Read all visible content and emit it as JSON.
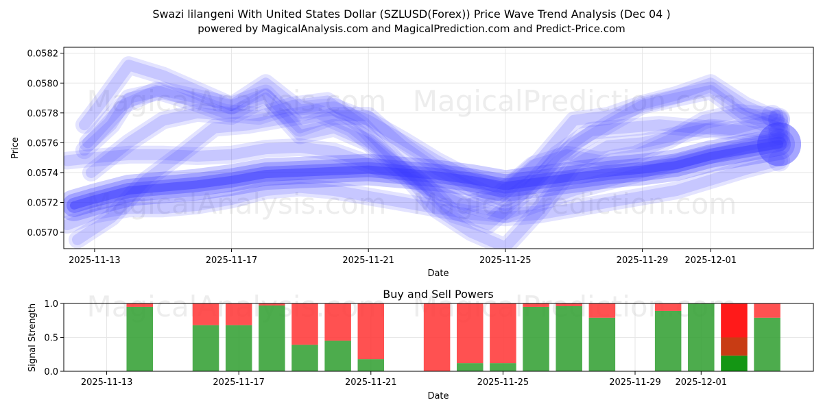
{
  "colors": {
    "wave": "#3a3aff",
    "buy": "#2e9e2e",
    "sell": "#ff3333",
    "mixed": "#c83c14",
    "buy_strong": "#149614",
    "sell_strong": "#ff1a1a"
  },
  "chart_data": [
    {
      "type": "line",
      "title": "Swazi lilangeni With United States Dollar (SZLUSD(Forex)) Price Wave Trend Analysis (Dec 04 )",
      "subtitle": "powered by MagicalAnalysis.com and MagicalPrediction.com and Predict-Price.com",
      "xlabel": "Date",
      "ylabel": "Price",
      "xlim": [
        -0.9,
        21.0
      ],
      "ylim": [
        0.05689,
        0.05824
      ],
      "x_ticks": [
        {
          "day": 0,
          "label": "2025-11-13"
        },
        {
          "day": 4,
          "label": "2025-11-17"
        },
        {
          "day": 8,
          "label": "2025-11-21"
        },
        {
          "day": 12,
          "label": "2025-11-25"
        },
        {
          "day": 16,
          "label": "2025-11-29"
        },
        {
          "day": 18,
          "label": "2025-12-01"
        }
      ],
      "y_ticks": [
        "0.0570",
        "0.0572",
        "0.0574",
        "0.0576",
        "0.0578",
        "0.0580",
        "0.0582"
      ],
      "watermarks": [
        "MagicalAnalysis.com",
        "MagicalPrediction.com"
      ],
      "series": [
        {
          "name": "wave-main",
          "x": [
            -0.6,
            0,
            1,
            2,
            3,
            4,
            5,
            6,
            7,
            8,
            9,
            10,
            11,
            12,
            13,
            14,
            15,
            16,
            17,
            18,
            19,
            20
          ],
          "values": [
            0.05718,
            0.05722,
            0.05728,
            0.0573,
            0.05732,
            0.05735,
            0.05739,
            0.0574,
            0.05741,
            0.05742,
            0.0574,
            0.05738,
            0.05735,
            0.05731,
            0.05734,
            0.05737,
            0.0574,
            0.05742,
            0.05745,
            0.05751,
            0.05755,
            0.05759
          ]
        },
        {
          "name": "wave-2",
          "x": [
            -0.8,
            0,
            1,
            2,
            3,
            4,
            5,
            6,
            7,
            8,
            9,
            10,
            11,
            12,
            13,
            14,
            15,
            16,
            17,
            18,
            19,
            20
          ],
          "values": [
            0.05748,
            0.0575,
            0.05752,
            0.05752,
            0.05751,
            0.05752,
            0.05756,
            0.05757,
            0.05754,
            0.05746,
            0.05738,
            0.05728,
            0.05718,
            0.05712,
            0.0572,
            0.05728,
            0.05734,
            0.0574,
            0.05746,
            0.05752,
            0.05758,
            0.05762
          ]
        },
        {
          "name": "wave-3",
          "x": [
            -0.8,
            0,
            1,
            2,
            3,
            4,
            5,
            6,
            7,
            8,
            9,
            10,
            11,
            12,
            13,
            14,
            15,
            16,
            17,
            18,
            19,
            20
          ],
          "values": [
            0.05705,
            0.05712,
            0.05716,
            0.05716,
            0.05718,
            0.05722,
            0.05728,
            0.0573,
            0.05728,
            0.05724,
            0.0572,
            0.05716,
            0.05712,
            0.0571,
            0.05712,
            0.05716,
            0.0572,
            0.05724,
            0.05728,
            0.05735,
            0.05742,
            0.05748
          ]
        },
        {
          "name": "wave-4",
          "x": [
            -0.3,
            0.3,
            1,
            2,
            3,
            4,
            5,
            6,
            7,
            8,
            9,
            10,
            11,
            12,
            13,
            14,
            15,
            16,
            17,
            18,
            19,
            20
          ],
          "values": [
            0.05772,
            0.0579,
            0.05812,
            0.05805,
            0.05795,
            0.05785,
            0.058,
            0.05782,
            0.05784,
            0.05775,
            0.05762,
            0.05748,
            0.05736,
            0.05728,
            0.05748,
            0.05775,
            0.05778,
            0.05786,
            0.05792,
            0.058,
            0.05785,
            0.05775
          ]
        },
        {
          "name": "wave-5",
          "x": [
            -0.3,
            0.5,
            1,
            2,
            3,
            4,
            5,
            6,
            7,
            8,
            9,
            10,
            11,
            12,
            13,
            14,
            15,
            16,
            17,
            18,
            19,
            20
          ],
          "values": [
            0.05755,
            0.05772,
            0.0579,
            0.05795,
            0.0579,
            0.05785,
            0.05793,
            0.0577,
            0.05778,
            0.05778,
            0.05758,
            0.05742,
            0.0573,
            0.0572,
            0.05736,
            0.05758,
            0.05772,
            0.05785,
            0.0579,
            0.05795,
            0.05778,
            0.0577
          ]
        },
        {
          "name": "wave-6",
          "x": [
            -0.1,
            1,
            2,
            3,
            4,
            5,
            6,
            7,
            8,
            9,
            10,
            11,
            12,
            13,
            14,
            15,
            16,
            17,
            18,
            19,
            20
          ],
          "values": [
            0.0574,
            0.0576,
            0.05775,
            0.0578,
            0.05778,
            0.0579,
            0.05765,
            0.0577,
            0.0576,
            0.0574,
            0.05715,
            0.057,
            0.0569,
            0.05715,
            0.05745,
            0.05758,
            0.0576,
            0.05765,
            0.0577,
            0.05768,
            0.05766
          ]
        },
        {
          "name": "wave-7",
          "x": [
            -0.5,
            0.5,
            1.5,
            2.5,
            3.5,
            4.5,
            5.5,
            6.5,
            7.5,
            8.5,
            9.5,
            10.5,
            11.5,
            12.5,
            13.5,
            14.5,
            15.5,
            16.5,
            17.5,
            18.5,
            19.5,
            20
          ],
          "values": [
            0.05695,
            0.0571,
            0.05735,
            0.05752,
            0.0577,
            0.05772,
            0.05776,
            0.0578,
            0.0577,
            0.05752,
            0.05735,
            0.05712,
            0.05705,
            0.05725,
            0.05752,
            0.05768,
            0.0577,
            0.05772,
            0.0577,
            0.05768,
            0.05774,
            0.05776
          ]
        },
        {
          "name": "wave-8",
          "x": [
            -0.2,
            0.8,
            1.8,
            2.8,
            3.8,
            4.8,
            5.8,
            6.8,
            7.8,
            8.8,
            9.8,
            10.8,
            11.8,
            12.8,
            13.8,
            14.8,
            15.8,
            16.8,
            17.8,
            18.8,
            19.8
          ],
          "values": [
            0.0576,
            0.05785,
            0.05795,
            0.05788,
            0.0578,
            0.05778,
            0.05785,
            0.05788,
            0.05772,
            0.05748,
            0.05728,
            0.05718,
            0.05725,
            0.05745,
            0.05752,
            0.05748,
            0.05752,
            0.05762,
            0.05775,
            0.0578,
            0.05778
          ]
        }
      ]
    },
    {
      "type": "bar",
      "title": "Buy and Sell Powers",
      "xlabel": "Date",
      "ylabel": "Signal Strength",
      "xlim": [
        -1.3,
        21.4
      ],
      "ylim": [
        0,
        1
      ],
      "x_ticks": [
        {
          "day": 0,
          "label": "2025-11-13"
        },
        {
          "day": 4,
          "label": "2025-11-17"
        },
        {
          "day": 8,
          "label": "2025-11-21"
        },
        {
          "day": 12,
          "label": "2025-11-25"
        },
        {
          "day": 16,
          "label": "2025-11-29"
        },
        {
          "day": 18,
          "label": "2025-12-01"
        }
      ],
      "y_ticks": [
        "0.0",
        "0.5",
        "1.0"
      ],
      "watermarks": [
        "MagicalAnalysis.com",
        "MagicalPrediction.com"
      ],
      "bars": [
        {
          "day": 1,
          "buy": 0.95,
          "sell": 0.05
        },
        {
          "day": 3,
          "buy": 0.68,
          "sell": 0.32
        },
        {
          "day": 4,
          "buy": 0.68,
          "sell": 0.32
        },
        {
          "day": 5,
          "buy": 0.97,
          "sell": 0.03
        },
        {
          "day": 6,
          "buy": 0.39,
          "sell": 0.61
        },
        {
          "day": 7,
          "buy": 0.45,
          "sell": 0.55
        },
        {
          "day": 8,
          "buy": 0.18,
          "sell": 0.82
        },
        {
          "day": 10,
          "buy": 0.0,
          "sell": 1.0
        },
        {
          "day": 11,
          "buy": 0.12,
          "sell": 0.88
        },
        {
          "day": 12,
          "buy": 0.12,
          "sell": 0.88
        },
        {
          "day": 13,
          "buy": 0.95,
          "sell": 0.05
        },
        {
          "day": 14,
          "buy": 0.96,
          "sell": 0.04
        },
        {
          "day": 15,
          "buy": 0.79,
          "sell": 0.21
        },
        {
          "day": 17,
          "buy": 0.89,
          "sell": 0.11
        },
        {
          "day": 18,
          "buy": 1.0,
          "sell": 0.0
        },
        {
          "day": 19,
          "buy": 0.23,
          "sell": 0.77,
          "mixed": 0.5
        },
        {
          "day": 20,
          "buy": 0.79,
          "sell": 0.21
        }
      ]
    }
  ]
}
